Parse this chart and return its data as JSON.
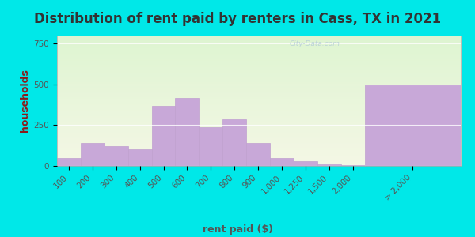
{
  "title": "Distribution of rent paid by renters in Cass, TX in 2021",
  "xlabel": "rent paid ($)",
  "ylabel": "households",
  "bar_color": "#c8a8d8",
  "bar_edgecolor": "#c0a0d0",
  "background_color": "#00e8e8",
  "plot_bg_color": "#e8f5e0",
  "categories_main": [
    "100",
    "200",
    "300",
    "400",
    "500",
    "600",
    "700",
    "800",
    "900",
    "1,000",
    "1,250",
    "1,500",
    "2,000"
  ],
  "values_main": [
    50,
    140,
    120,
    100,
    370,
    415,
    240,
    285,
    140,
    50,
    30,
    10,
    5
  ],
  "category_last": "> 2,000",
  "value_last": 500,
  "ylim": [
    0,
    800
  ],
  "yticks": [
    0,
    250,
    500,
    750
  ],
  "title_fontsize": 12,
  "axis_fontsize": 7.5,
  "label_fontsize": 9,
  "watermark": "City-Data.com",
  "ylabel_color": "#8b1a1a",
  "tick_color": "#555555"
}
